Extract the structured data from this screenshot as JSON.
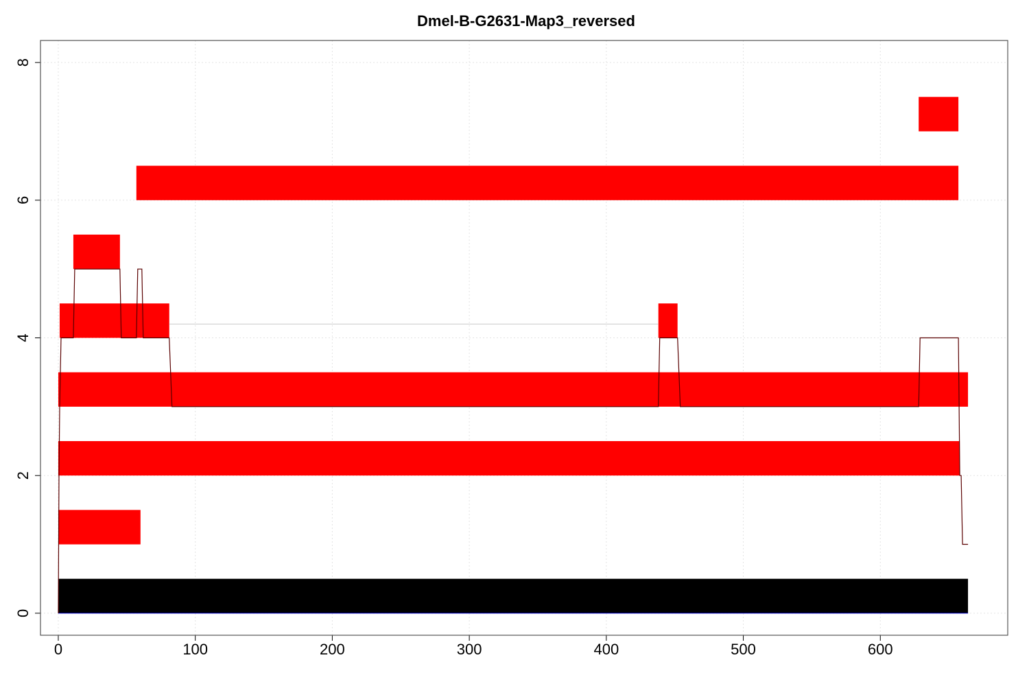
{
  "chart_data": {
    "type": "bar",
    "title": "Dmel-B-G2631-Map3_reversed",
    "xlabel": "",
    "ylabel": "",
    "xlim": [
      -13,
      693
    ],
    "ylim": [
      -0.32,
      8.32
    ],
    "x_ticks": [
      0,
      100,
      200,
      300,
      400,
      500,
      600
    ],
    "y_ticks": [
      0,
      2,
      4,
      6,
      8
    ],
    "grid": true,
    "colors": {
      "segment": "#ff0000",
      "reference": "#000000",
      "coverage": "#5a0000",
      "link": "#cccccc",
      "grid": "#e3e3e3",
      "frame": "#555555"
    },
    "reference_bar": {
      "x_start": 0,
      "x_end": 664,
      "y_bottom": 0,
      "y_top": 0.5
    },
    "segments": [
      {
        "x_start": 0,
        "x_end": 60,
        "y_bottom": 1,
        "y_top": 1.5
      },
      {
        "x_start": 0,
        "x_end": 658,
        "y_bottom": 2,
        "y_top": 2.5
      },
      {
        "x_start": 0,
        "x_end": 664,
        "y_bottom": 3,
        "y_top": 3.5
      },
      {
        "x_start": 1,
        "x_end": 81,
        "y_bottom": 4,
        "y_top": 4.5
      },
      {
        "x_start": 438,
        "x_end": 452,
        "y_bottom": 4,
        "y_top": 4.5
      },
      {
        "x_start": 11,
        "x_end": 45,
        "y_bottom": 5,
        "y_top": 5.5
      },
      {
        "x_start": 57,
        "x_end": 657,
        "y_bottom": 6,
        "y_top": 6.5
      },
      {
        "x_start": 628,
        "x_end": 657,
        "y_bottom": 7,
        "y_top": 7.5
      }
    ],
    "link": {
      "x_start": 81,
      "x_end": 438,
      "y": 4.2
    },
    "coverage_line": {
      "x": [
        0,
        0.5,
        1,
        2,
        11,
        12,
        45,
        46,
        57,
        58,
        61,
        62,
        81,
        83,
        438,
        439,
        452,
        454,
        628,
        629,
        657,
        658,
        659,
        660,
        664
      ],
      "y": [
        0,
        2,
        3,
        4,
        4,
        5,
        5,
        4,
        4,
        5,
        5,
        4,
        4,
        3,
        3,
        4,
        4,
        3,
        3,
        4,
        4,
        2,
        2,
        1,
        1
      ]
    }
  }
}
